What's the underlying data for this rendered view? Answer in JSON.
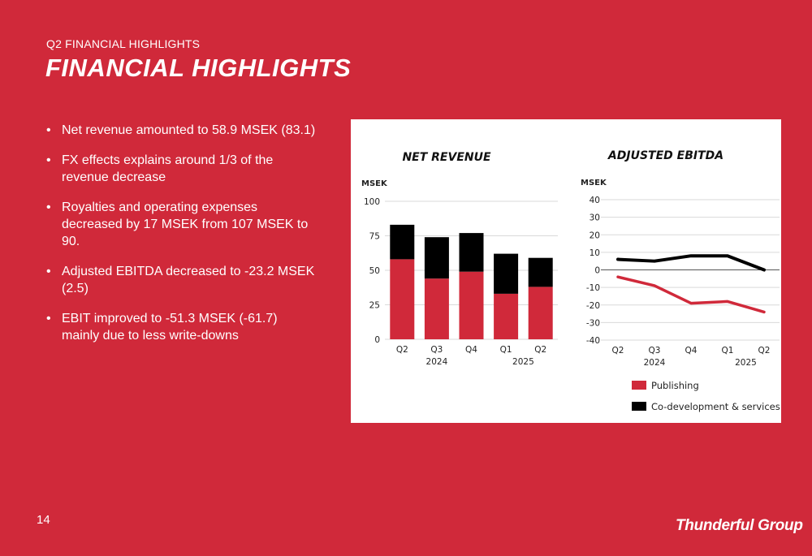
{
  "header": {
    "eyebrow": "Q2 FINANCIAL HIGHLIGHTS",
    "title": "FINANCIAL HIGHLIGHTS"
  },
  "bullets": [
    "Net revenue amounted to 58.9 MSEK (83.1)",
    "FX effects explains around 1/3 of the revenue decrease",
    "Royalties and operating expenses decreased by 17 MSEK from 107 MSEK to 90.",
    "Adjusted EBITDA decreased to -23.2 MSEK (2.5)",
    "EBIT improved to -51.3 MSEK (-61.7) mainly due to less write-downs"
  ],
  "bullet_glyph": "•",
  "footer": {
    "page_number": "14",
    "logo_text": "Thunderful Group",
    "logo_icon": "cloud-lightning-icon"
  },
  "colors": {
    "background": "#d0293a",
    "publishing": "#d0293a",
    "codev": "#000000",
    "grid": "#d9d9d9"
  },
  "chart_data": [
    {
      "type": "bar",
      "stacked": true,
      "title": "NET REVENUE",
      "ylabel": "MSEK",
      "ylim": [
        0,
        100
      ],
      "yticks": [
        0,
        25,
        50,
        75,
        100
      ],
      "categories": [
        "Q2",
        "Q3",
        "Q4",
        "Q1",
        "Q2"
      ],
      "year_labels": [
        {
          "label": "2024",
          "category_index": 1
        },
        {
          "label": "2025",
          "category_index": 3.5
        }
      ],
      "grid": true,
      "series": [
        {
          "name": "Publishing",
          "values": [
            58,
            44,
            49,
            33,
            38
          ]
        },
        {
          "name": "Co-development & services",
          "values": [
            25,
            30,
            28,
            29,
            21
          ]
        }
      ]
    },
    {
      "type": "line",
      "title": "ADJUSTED EBITDA",
      "ylabel": "MSEK",
      "ylim": [
        -40,
        40
      ],
      "yticks": [
        40,
        30,
        20,
        10,
        0,
        -10,
        -20,
        -30,
        -40
      ],
      "categories": [
        "Q2",
        "Q3",
        "Q4",
        "Q1",
        "Q2"
      ],
      "year_labels": [
        {
          "label": "2024",
          "category_index": 1
        },
        {
          "label": "2025",
          "category_index": 3.5
        }
      ],
      "grid": true,
      "series": [
        {
          "name": "Publishing",
          "values": [
            -4,
            -9,
            -19,
            -18,
            -24
          ]
        },
        {
          "name": "Co-development & services",
          "values": [
            6,
            5,
            8,
            8,
            0
          ]
        }
      ],
      "legend": {
        "placement": "bottom",
        "entries": [
          "Publishing",
          "Co-development & services"
        ]
      }
    }
  ]
}
